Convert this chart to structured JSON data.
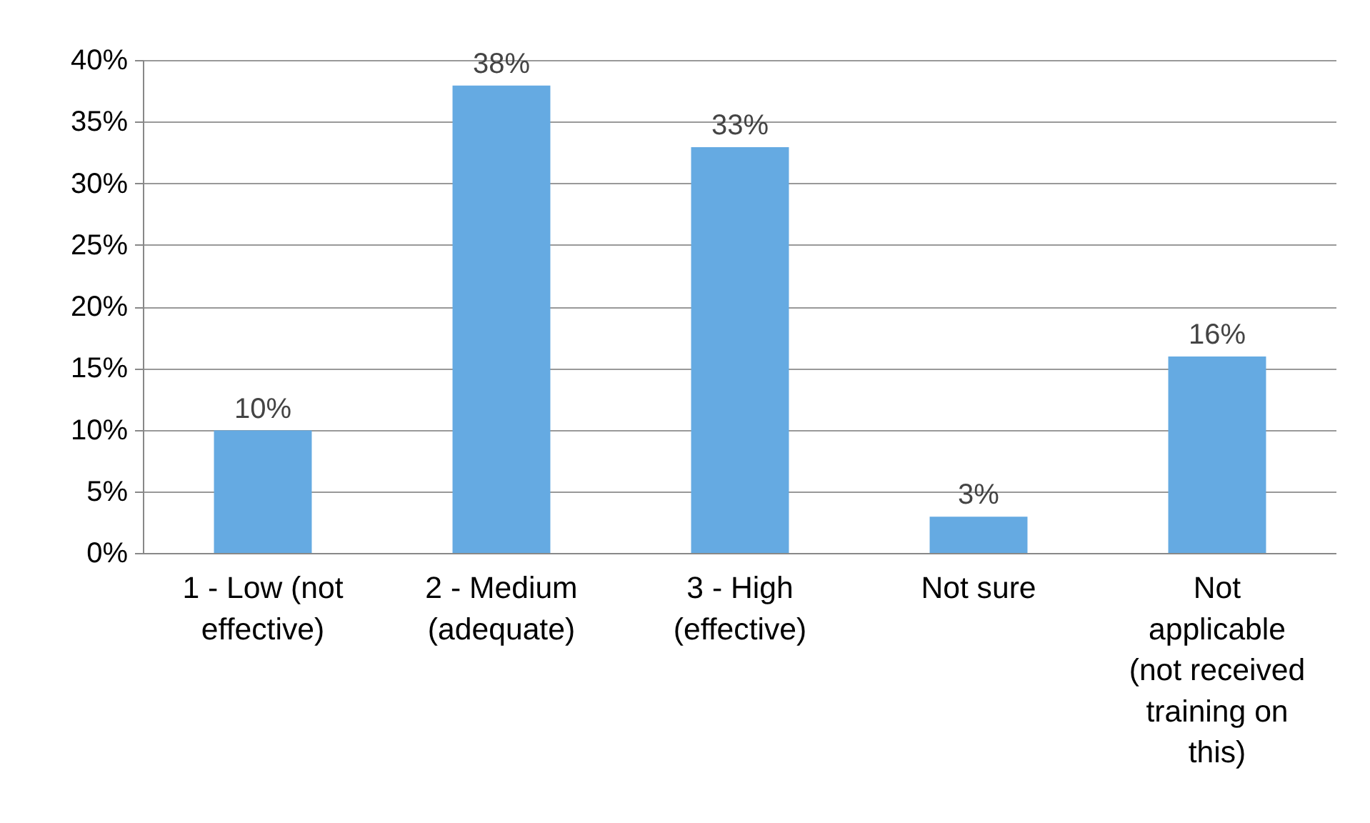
{
  "chart_data": {
    "type": "bar",
    "categories": [
      "1 - Low (not effective)",
      "2 - Medium (adequate)",
      "3 - High (effective)",
      "Not sure",
      "Not applicable (not received training on this)"
    ],
    "values": [
      10,
      38,
      33,
      3,
      16
    ],
    "value_labels": [
      "10%",
      "38%",
      "33%",
      "3%",
      "16%"
    ],
    "color": "#65aae2",
    "ylim": [
      0,
      40
    ],
    "yticks": [
      {
        "value": 0,
        "label": "0%"
      },
      {
        "value": 5,
        "label": "5%"
      },
      {
        "value": 10,
        "label": "10%"
      },
      {
        "value": 15,
        "label": "15%"
      },
      {
        "value": 20,
        "label": "20%"
      },
      {
        "value": 25,
        "label": "25%"
      },
      {
        "value": 30,
        "label": "30%"
      },
      {
        "value": 35,
        "label": "35%"
      },
      {
        "value": 40,
        "label": "40%"
      }
    ],
    "grid": "y"
  }
}
